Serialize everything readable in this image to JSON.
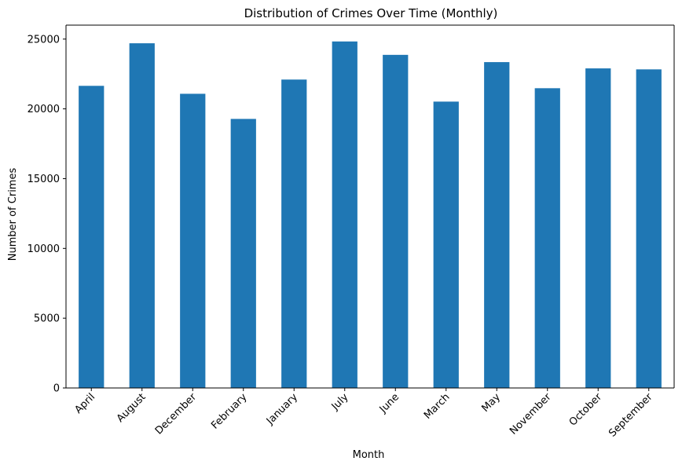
{
  "chart_data": {
    "type": "bar",
    "title": "Distribution of Crimes Over Time (Monthly)",
    "xlabel": "Month",
    "ylabel": "Number of Crimes",
    "categories": [
      "April",
      "August",
      "December",
      "February",
      "January",
      "July",
      "June",
      "March",
      "May",
      "November",
      "October",
      "September"
    ],
    "values": [
      21650,
      24700,
      21080,
      19280,
      22100,
      24830,
      23870,
      20520,
      23350,
      21480,
      22900,
      22830
    ],
    "ylim": [
      0,
      26000
    ],
    "yticks": [
      0,
      5000,
      10000,
      15000,
      20000,
      25000
    ],
    "grid": false,
    "legend": "none",
    "colors": {
      "bar": "#1f77b4",
      "axis": "#000000"
    }
  }
}
